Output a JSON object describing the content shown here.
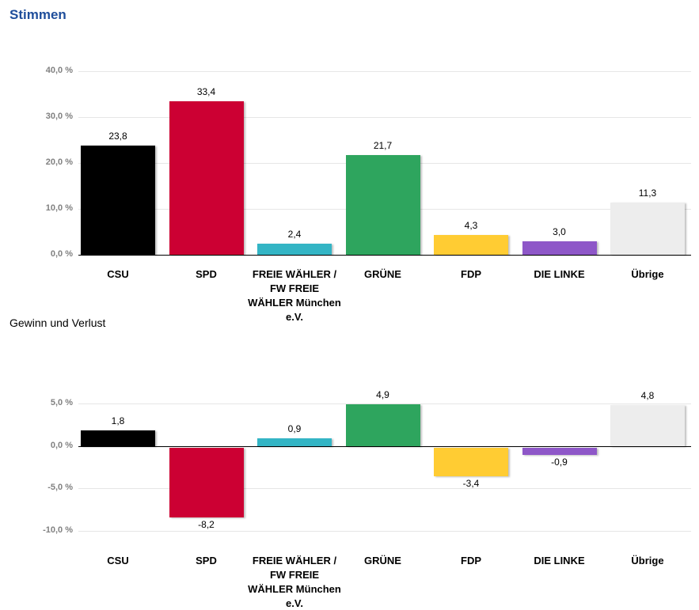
{
  "title": "Stimmen",
  "subtitle": "Gewinn und Verlust",
  "chart_data": [
    {
      "type": "bar",
      "title": "Stimmen",
      "categories": [
        "CSU",
        "SPD",
        "FREIE WÄHLER / FW FREIE WÄHLER München e.V.",
        "GRÜNE",
        "FDP",
        "DIE LINKE",
        "Übrige"
      ],
      "values": [
        23.8,
        33.4,
        2.4,
        21.7,
        4.3,
        3.0,
        11.3
      ],
      "value_labels": [
        "23,8",
        "33,4",
        "2,4",
        "21,7",
        "4,3",
        "3,0",
        "11,3"
      ],
      "colors": [
        "#000000",
        "#cc0033",
        "#33b5c5",
        "#2ea55e",
        "#ffcc33",
        "#8e57c8",
        "#ededed"
      ],
      "yticks": [
        0,
        10,
        20,
        30,
        40
      ],
      "ytick_labels": [
        "0,0 %",
        "10,0 %",
        "20,0 %",
        "30,0 %",
        "40,0 %"
      ],
      "ylim": [
        0,
        40
      ],
      "grid": true
    },
    {
      "type": "bar",
      "title": "Gewinn und Verlust",
      "categories": [
        "CSU",
        "SPD",
        "FREIE WÄHLER / FW FREIE WÄHLER München e.V.",
        "GRÜNE",
        "FDP",
        "DIE LINKE",
        "Übrige"
      ],
      "values": [
        1.8,
        -8.2,
        0.9,
        4.9,
        -3.4,
        -0.9,
        4.8
      ],
      "value_labels": [
        "1,8",
        "-8,2",
        "0,9",
        "4,9",
        "-3,4",
        "-0,9",
        "4,8"
      ],
      "colors": [
        "#000000",
        "#cc0033",
        "#33b5c5",
        "#2ea55e",
        "#ffcc33",
        "#8e57c8",
        "#ededed"
      ],
      "yticks": [
        -10,
        -5,
        0,
        5
      ],
      "ytick_labels": [
        "-10,0 %",
        "-5,0 %",
        "0,0 %",
        "5,0 %"
      ],
      "ylim": [
        -10,
        5
      ],
      "grid": true
    }
  ]
}
